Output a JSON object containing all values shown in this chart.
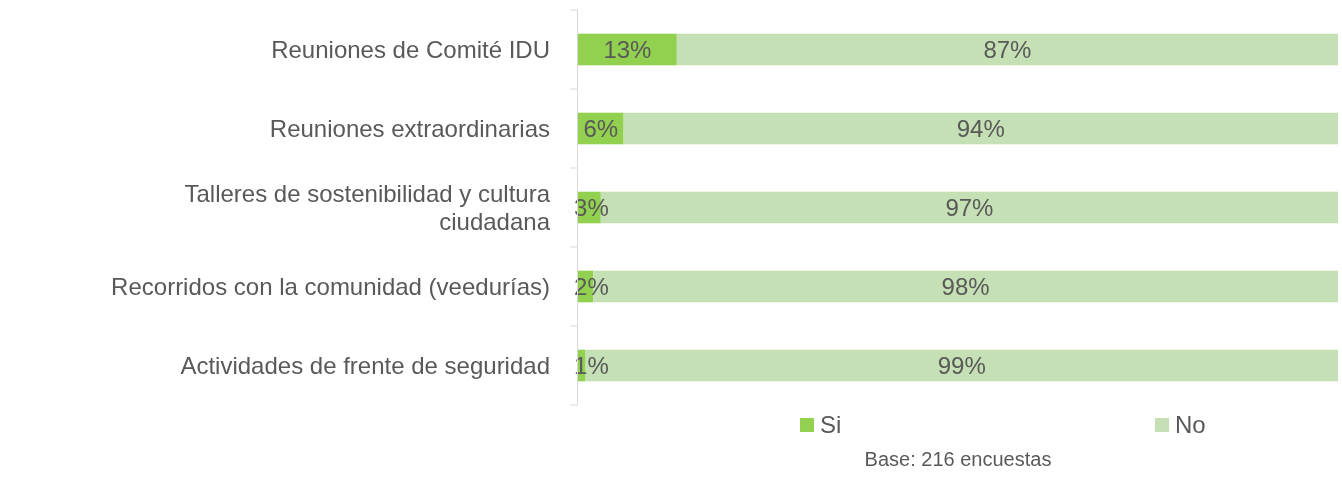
{
  "chart_data": {
    "type": "bar",
    "orientation": "horizontal",
    "stacked": true,
    "categories": [
      "Reuniones de Comité IDU",
      "Reuniones extraordinarias",
      "Talleres de sostenibilidad y cultura ciudadana",
      "Recorridos con la comunidad (veedurías)",
      "Actividades de frente de seguridad"
    ],
    "series": [
      {
        "name": "Si",
        "color": "#92d050",
        "values": [
          13,
          6,
          3,
          2,
          1
        ],
        "value_labels": [
          "13%",
          "6%",
          "3%",
          "2%",
          "1%"
        ]
      },
      {
        "name": "No",
        "color": "#c5e0b4",
        "values": [
          87,
          94,
          97,
          98,
          99
        ],
        "value_labels": [
          "87%",
          "94%",
          "97%",
          "98%",
          "99%"
        ]
      }
    ],
    "tick_labels": "y",
    "legend": "bottom",
    "annotations": [
      "Base: 216 encuestas"
    ]
  }
}
